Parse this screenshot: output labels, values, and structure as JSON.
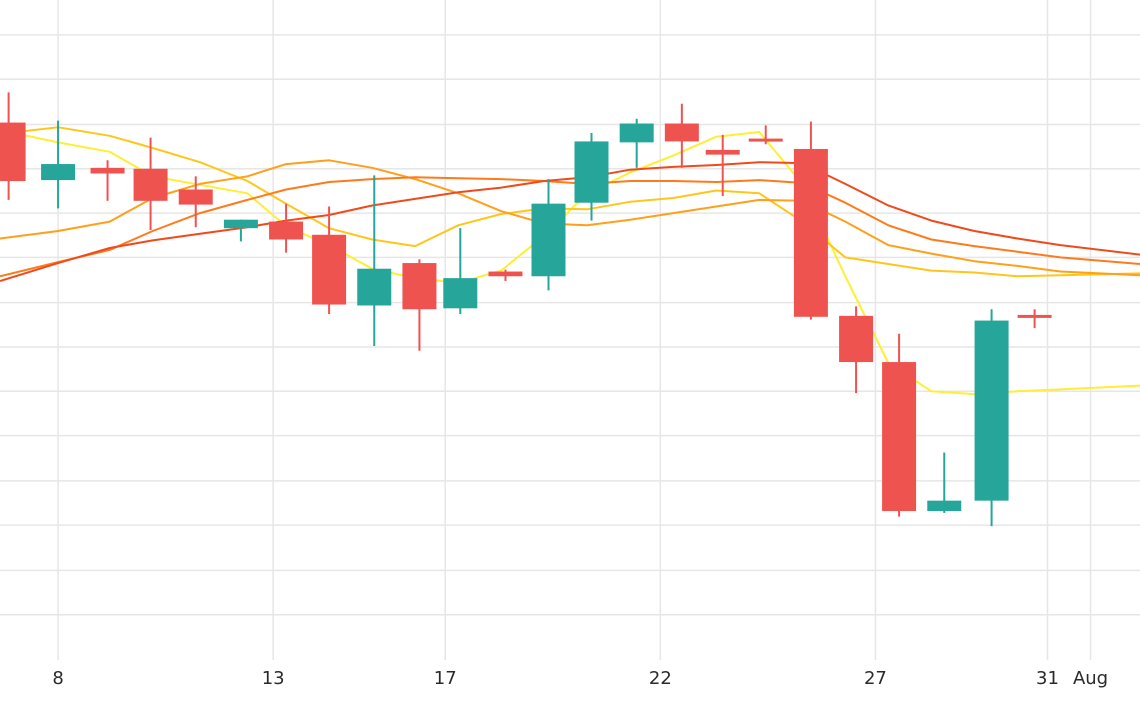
{
  "chart_data": {
    "type": "candlestick",
    "colors": {
      "up": "#26a69a",
      "down": "#ef5350",
      "grid": "#e6e6e6",
      "ma_colors": [
        "#ffee33",
        "#ffc61a",
        "#ff9f1a",
        "#ff7a1a",
        "#f04a1a"
      ]
    },
    "x_ticks": [
      {
        "x": 8,
        "label": "8"
      },
      {
        "x": 13,
        "label": "13"
      },
      {
        "x": 17,
        "label": "17"
      },
      {
        "x": 22,
        "label": "22"
      },
      {
        "x": 27,
        "label": "27"
      },
      {
        "x": 31,
        "label": "31"
      },
      {
        "x": 32,
        "label": "Aug"
      }
    ],
    "x_range": [
      6.65,
      33.15
    ],
    "y_range": [
      0,
      700
    ],
    "y_grid": [
      48,
      95,
      143,
      190,
      238,
      285,
      332,
      379,
      427,
      474,
      521,
      568,
      616,
      663
    ],
    "candles": [
      {
        "x": 7,
        "o": 570,
        "h": 602,
        "l": 488,
        "c": 508
      },
      {
        "x": 8,
        "o": 509,
        "h": 572,
        "l": 479,
        "c": 526
      },
      {
        "x": 9,
        "o": 522,
        "h": 530,
        "l": 487,
        "c": 516
      },
      {
        "x": 10,
        "o": 521,
        "h": 554,
        "l": 456,
        "c": 487
      },
      {
        "x": 11,
        "o": 499,
        "h": 513,
        "l": 459,
        "c": 483
      },
      {
        "x": 12,
        "o": 458,
        "h": 467,
        "l": 444,
        "c": 467
      },
      {
        "x": 13,
        "o": 465,
        "h": 484,
        "l": 432,
        "c": 446
      },
      {
        "x": 14,
        "o": 451,
        "h": 481,
        "l": 367,
        "c": 377
      },
      {
        "x": 15,
        "o": 376,
        "h": 514,
        "l": 333,
        "c": 415
      },
      {
        "x": 16,
        "o": 421,
        "h": 425,
        "l": 328,
        "c": 372
      },
      {
        "x": 17,
        "o": 373,
        "h": 458,
        "l": 367,
        "c": 405
      },
      {
        "x": 18,
        "o": 412,
        "h": 414,
        "l": 402,
        "c": 407
      },
      {
        "x": 19,
        "o": 407,
        "h": 510,
        "l": 392,
        "c": 484
      },
      {
        "x": 20,
        "o": 485,
        "h": 559,
        "l": 466,
        "c": 550
      },
      {
        "x": 21,
        "o": 549,
        "h": 574,
        "l": 522,
        "c": 569
      },
      {
        "x": 22,
        "o": 569,
        "h": 590,
        "l": 522,
        "c": 550
      },
      {
        "x": 23,
        "o": 541,
        "h": 557,
        "l": 492,
        "c": 536
      },
      {
        "x": 24,
        "o": 553,
        "h": 567,
        "l": 547,
        "c": 551
      },
      {
        "x": 25,
        "o": 542,
        "h": 571,
        "l": 361,
        "c": 364
      },
      {
        "x": 26,
        "o": 365,
        "h": 375,
        "l": 283,
        "c": 316
      },
      {
        "x": 27,
        "o": 316,
        "h": 346,
        "l": 152,
        "c": 158
      },
      {
        "x": 28,
        "o": 158,
        "h": 220,
        "l": 156,
        "c": 169
      },
      {
        "x": 29,
        "o": 169,
        "h": 372,
        "l": 142,
        "c": 360
      },
      {
        "x": 30,
        "o": 366,
        "h": 372,
        "l": 352,
        "c": 364
      }
    ],
    "x_positions": [
      6.85,
      8,
      9.15,
      10.15,
      11.2,
      12.25,
      13.3,
      14.3,
      15.35,
      16.4,
      17.35,
      18.4,
      19.4,
      20.4,
      21.45,
      22.5,
      23.45,
      24.45,
      25.5,
      26.55,
      27.55,
      28.6,
      29.7,
      30.7
    ],
    "moving_averages": [
      {
        "values": [
          [
            6.65,
            562
          ],
          [
            8,
            549
          ],
          [
            9.2,
            539
          ],
          [
            10.2,
            513
          ],
          [
            11.3,
            504
          ],
          [
            12.4,
            495
          ],
          [
            13.3,
            460
          ],
          [
            14.3,
            440
          ],
          [
            15.3,
            415
          ],
          [
            16.3,
            405
          ],
          [
            17.3,
            400
          ],
          [
            18.3,
            413
          ],
          [
            19.3,
            450
          ],
          [
            20.3,
            495
          ],
          [
            21.3,
            517
          ],
          [
            22.3,
            535
          ],
          [
            23.3,
            555
          ],
          [
            24.3,
            560
          ],
          [
            25.3,
            505
          ],
          [
            26.3,
            407
          ],
          [
            27.3,
            315
          ],
          [
            28.3,
            285
          ],
          [
            29.3,
            282
          ],
          [
            30.3,
            285
          ],
          [
            31.3,
            287
          ],
          [
            33.15,
            291
          ]
        ]
      },
      {
        "values": [
          [
            6.65,
            558
          ],
          [
            8,
            565
          ],
          [
            9.2,
            556
          ],
          [
            10.2,
            543
          ],
          [
            11.3,
            528
          ],
          [
            12.4,
            508
          ],
          [
            13.3,
            484
          ],
          [
            14.3,
            458
          ],
          [
            15.3,
            446
          ],
          [
            16.3,
            439
          ],
          [
            17.3,
            461
          ],
          [
            18.3,
            473
          ],
          [
            19.3,
            479
          ],
          [
            20.3,
            478
          ],
          [
            21.3,
            486
          ],
          [
            22.3,
            490
          ],
          [
            23.3,
            498
          ],
          [
            24.3,
            495
          ],
          [
            25.3,
            465
          ],
          [
            26.3,
            427
          ],
          [
            27.3,
            420
          ],
          [
            28.3,
            413
          ],
          [
            29.3,
            411
          ],
          [
            30.3,
            407
          ],
          [
            31.3,
            408
          ],
          [
            33.15,
            410
          ]
        ]
      },
      {
        "values": [
          [
            6.65,
            447
          ],
          [
            8,
            455
          ],
          [
            9.2,
            465
          ],
          [
            10.2,
            490
          ],
          [
            11.3,
            505
          ],
          [
            12.4,
            513
          ],
          [
            13.3,
            526
          ],
          [
            14.3,
            530
          ],
          [
            15.3,
            522
          ],
          [
            16.3,
            510
          ],
          [
            17.3,
            495
          ],
          [
            18.3,
            476
          ],
          [
            19.3,
            463
          ],
          [
            20.3,
            461
          ],
          [
            21.3,
            467
          ],
          [
            22.3,
            474
          ],
          [
            23.3,
            481
          ],
          [
            24.3,
            488
          ],
          [
            25.3,
            487
          ],
          [
            26.3,
            465
          ],
          [
            27.3,
            440
          ],
          [
            28.3,
            431
          ],
          [
            29.3,
            423
          ],
          [
            30.3,
            418
          ],
          [
            31.3,
            412
          ],
          [
            33.15,
            408
          ]
        ]
      },
      {
        "values": [
          [
            6.65,
            407
          ],
          [
            8,
            422
          ],
          [
            9.2,
            435
          ],
          [
            10.2,
            455
          ],
          [
            11.3,
            474
          ],
          [
            12.4,
            488
          ],
          [
            13.3,
            499
          ],
          [
            14.3,
            507
          ],
          [
            15.3,
            510
          ],
          [
            16.3,
            512
          ],
          [
            17.3,
            511
          ],
          [
            18.3,
            510
          ],
          [
            19.3,
            508
          ],
          [
            20.3,
            505
          ],
          [
            21.3,
            508
          ],
          [
            22.3,
            508
          ],
          [
            23.3,
            507
          ],
          [
            24.3,
            509
          ],
          [
            25.3,
            506
          ],
          [
            26.3,
            485
          ],
          [
            27.3,
            461
          ],
          [
            28.3,
            446
          ],
          [
            29.3,
            439
          ],
          [
            30.3,
            433
          ],
          [
            31.3,
            427
          ],
          [
            33.15,
            420
          ]
        ]
      },
      {
        "values": [
          [
            6.65,
            402
          ],
          [
            8,
            421
          ],
          [
            9.2,
            437
          ],
          [
            10.2,
            445
          ],
          [
            11.3,
            452
          ],
          [
            12.4,
            459
          ],
          [
            13.3,
            466
          ],
          [
            14.3,
            472
          ],
          [
            15.3,
            482
          ],
          [
            16.3,
            489
          ],
          [
            17.3,
            496
          ],
          [
            18.3,
            501
          ],
          [
            19.3,
            508
          ],
          [
            20.3,
            512
          ],
          [
            21.3,
            520
          ],
          [
            22.3,
            523
          ],
          [
            23.3,
            525
          ],
          [
            24.3,
            528
          ],
          [
            25.3,
            527
          ],
          [
            26.3,
            505
          ],
          [
            27.3,
            482
          ],
          [
            28.3,
            466
          ],
          [
            29.3,
            455
          ],
          [
            30.3,
            447
          ],
          [
            31.3,
            440
          ],
          [
            33.15,
            430
          ]
        ]
      }
    ]
  }
}
